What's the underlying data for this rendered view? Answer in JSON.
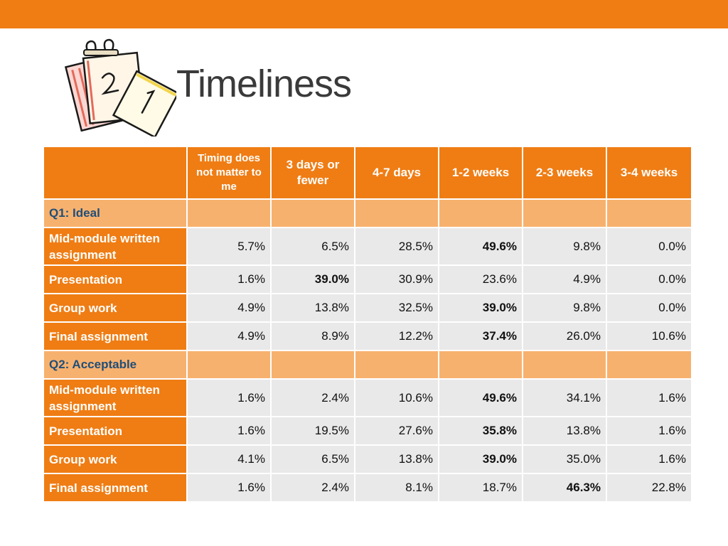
{
  "title": "Timeliness",
  "colors": {
    "accent": "#ef7d14",
    "section": "#f7b16e",
    "cell": "#e9e9e9",
    "section_text": "#1f4e79"
  },
  "icons": {
    "calendar": "calendar-pages-clipart-icon"
  },
  "table": {
    "headers": [
      "",
      "Timing does not matter to me",
      "3 days or fewer",
      "4-7 days",
      "1-2 weeks",
      "2-3 weeks",
      "3-4 weeks"
    ],
    "sections": [
      {
        "label": "Q1: Ideal",
        "rows": [
          {
            "label": "Mid-module written assignment",
            "values": [
              "5.7%",
              "6.5%",
              "28.5%",
              "49.6%",
              "9.8%",
              "0.0%"
            ],
            "bold": [
              3
            ]
          },
          {
            "label": "Presentation",
            "values": [
              "1.6%",
              "39.0%",
              "30.9%",
              "23.6%",
              "4.9%",
              "0.0%"
            ],
            "bold": [
              1
            ]
          },
          {
            "label": "Group work",
            "values": [
              "4.9%",
              "13.8%",
              "32.5%",
              "39.0%",
              "9.8%",
              "0.0%"
            ],
            "bold": [
              3
            ]
          },
          {
            "label": "Final assignment",
            "values": [
              "4.9%",
              "8.9%",
              "12.2%",
              "37.4%",
              "26.0%",
              "10.6%"
            ],
            "bold": [
              3
            ]
          }
        ]
      },
      {
        "label": "Q2: Acceptable",
        "rows": [
          {
            "label": "Mid-module written assignment",
            "values": [
              "1.6%",
              "2.4%",
              "10.6%",
              "49.6%",
              "34.1%",
              "1.6%"
            ],
            "bold": [
              3
            ]
          },
          {
            "label": "Presentation",
            "values": [
              "1.6%",
              "19.5%",
              "27.6%",
              "35.8%",
              "13.8%",
              "1.6%"
            ],
            "bold": [
              3
            ]
          },
          {
            "label": "Group work",
            "values": [
              "4.1%",
              "6.5%",
              "13.8%",
              "39.0%",
              "35.0%",
              "1.6%"
            ],
            "bold": [
              3
            ]
          },
          {
            "label": "Final assignment",
            "values": [
              "1.6%",
              "2.4%",
              "8.1%",
              "18.7%",
              "46.3%",
              "22.8%"
            ],
            "bold": [
              4
            ]
          }
        ]
      }
    ]
  }
}
